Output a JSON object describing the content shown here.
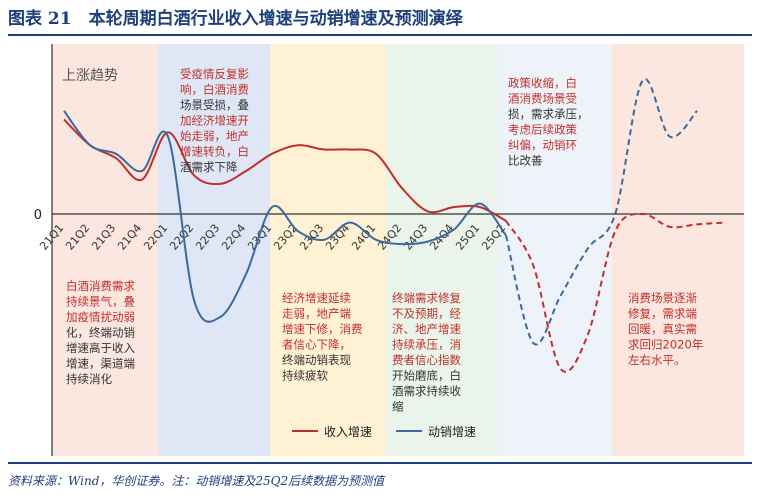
{
  "title": "图表 21　本轮周期白酒行业收入增速与动销增速及预测演绎",
  "source": "资料来源：Wind，华创证券。注：动销增速及25Q2后续数据为预测值",
  "chart_data": {
    "type": "line",
    "zero_label": "0",
    "corner_label": "上涨趋势",
    "categories": [
      "21Q1",
      "21Q2",
      "21Q3",
      "21Q4",
      "22Q1",
      "22Q2",
      "22Q3",
      "22Q4",
      "23Q1",
      "23Q2",
      "23Q3",
      "23Q4",
      "24Q1",
      "24Q2",
      "24Q3",
      "24Q4",
      "25Q1",
      "25Q2"
    ],
    "series": [
      {
        "name": "收入增速",
        "color": "#c0302b",
        "values": [
          11,
          8,
          6.5,
          4,
          9.5,
          4.5,
          3.5,
          5,
          7,
          8,
          7.5,
          7.5,
          7,
          3,
          0.3,
          0.8,
          0.8,
          -0.8
        ],
        "forecast": [
          -0.8,
          -6,
          -18,
          -14,
          -2,
          0,
          -1.5,
          -1.2,
          -1
        ]
      },
      {
        "name": "动销增速",
        "color": "#3c6a9c",
        "values": [
          12,
          8,
          7,
          5,
          9,
          -10,
          -12,
          -7,
          0.8,
          -2,
          -3,
          -1,
          -3,
          -3.5,
          -3.2,
          -1.8,
          1.2,
          -2.5
        ],
        "forecast": [
          -15,
          -9.5,
          -4,
          0,
          15.5,
          9,
          12
        ]
      }
    ],
    "y_zero_at": 0,
    "legend": "bottom-right",
    "phases": [
      {
        "color": "#fbe6e0",
        "text": ""
      },
      {
        "color": "#dfe6f5",
        "text": ""
      },
      {
        "color": "#fff1d4",
        "text": ""
      },
      {
        "color": "#eaf4ea",
        "text": ""
      },
      {
        "color": "#eef3fa",
        "text": ""
      },
      {
        "color": "#fbe6e0",
        "text": ""
      }
    ],
    "annotations": {
      "n1": [
        "受疫情反复影",
        "响，白酒消费",
        "场景受损，叠",
        "加经济增速开",
        "始走弱，地产",
        "增速转负，白",
        "酒需求下降"
      ],
      "n2": [
        "政策收缩，白",
        "酒消费场景受",
        "损，需求承压，",
        "考虑后续政策",
        "纠偏，动销环",
        "比改善"
      ],
      "n3": [
        "白酒消费需求",
        "持续景气，叠",
        "加疫情扰动弱",
        "化，终端动销",
        "增速高于收入",
        "增速，渠道端",
        "持续消化"
      ],
      "n4": [
        "经济增速延续",
        "走弱，地产端",
        "增速下修，消费",
        "者信心下降，",
        "终端动销表现",
        "持续疲软"
      ],
      "n5": [
        "终端需求修复",
        "不及预期，经",
        "济、地产增速",
        "持续承压，消",
        "费者信心指数",
        "开始磨底，白",
        "酒需求持续收",
        "缩"
      ],
      "n6": [
        "消费场景逐渐",
        "修复，需求端",
        "回暖，真实需",
        "求回归2020年",
        "左右水平。"
      ]
    }
  }
}
